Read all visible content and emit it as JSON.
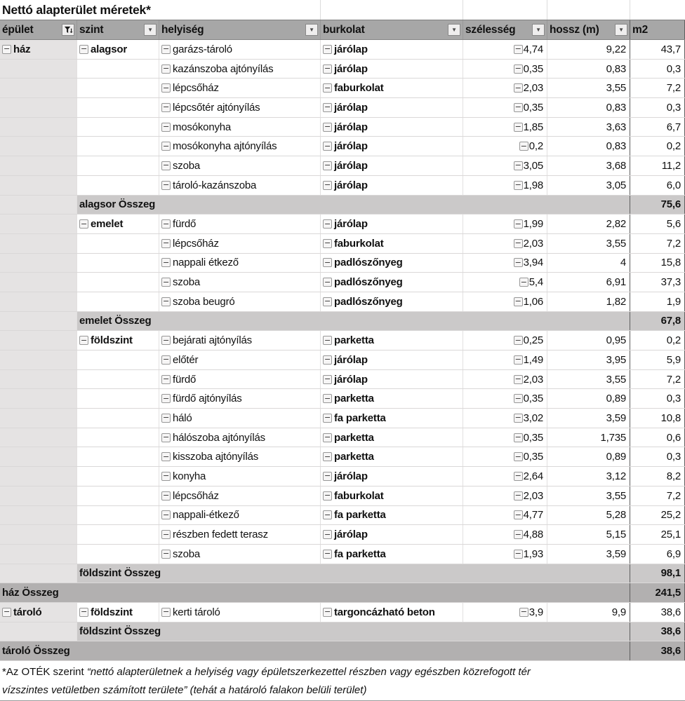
{
  "title": "Nettó alapterület méretek*",
  "icons": {
    "collapse": "−",
    "dropdown": "▼",
    "filter": "funnel-with-arrow"
  },
  "footnote": {
    "prefix": "*Az OTÉK szerint ",
    "italic1": "“nettó alapterületnek a helyiség vagy épületszerkezettel részben vagy egészben közrefogott tér",
    "italic2": "vízszintes vetületben számított területe” (tehát a határoló falakon belüli terület)"
  },
  "table": {
    "columns": [
      {
        "label": "épület",
        "icon": "filter"
      },
      {
        "label": "szint",
        "icon": "dropdown"
      },
      {
        "label": "helyiség",
        "icon": "dropdown"
      },
      {
        "label": "burkolat",
        "icon": "dropdown"
      },
      {
        "label": "szélesség",
        "icon": "dropdown"
      },
      {
        "label": "hossz (m)",
        "icon": "dropdown"
      },
      {
        "label": "m2",
        "icon": null
      }
    ],
    "rows": [
      {
        "type": "data",
        "c": [
          "ház",
          "alagsor",
          "garázs-tároló",
          "járólap",
          "4,74",
          "9,22",
          "43,7"
        ]
      },
      {
        "type": "data",
        "c": [
          "",
          "",
          "kazánszoba ajtónyílás",
          "járólap",
          "0,35",
          "0,83",
          "0,3"
        ]
      },
      {
        "type": "data",
        "c": [
          "",
          "",
          "lépcsőház",
          "faburkolat",
          "2,03",
          "3,55",
          "7,2"
        ]
      },
      {
        "type": "data",
        "c": [
          "",
          "",
          "lépcsőtér ajtónyílás",
          "járólap",
          "0,35",
          "0,83",
          "0,3"
        ]
      },
      {
        "type": "data",
        "c": [
          "",
          "",
          "mosókonyha",
          "járólap",
          "1,85",
          "3,63",
          "6,7"
        ]
      },
      {
        "type": "data",
        "c": [
          "",
          "",
          "mosókonyha ajtónyílás",
          "járólap",
          "0,2",
          "0,83",
          "0,2"
        ]
      },
      {
        "type": "data",
        "c": [
          "",
          "",
          "szoba",
          "járólap",
          "3,05",
          "3,68",
          "11,2"
        ]
      },
      {
        "type": "data",
        "c": [
          "",
          "",
          "tároló-kazánszoba",
          "járólap",
          "1,98",
          "3,05",
          "6,0"
        ]
      },
      {
        "type": "sub2",
        "label": "alagsor Összeg",
        "m2": "75,6"
      },
      {
        "type": "data",
        "c": [
          "",
          "emelet",
          "fürdő",
          "járólap",
          "1,99",
          "2,82",
          "5,6"
        ]
      },
      {
        "type": "data",
        "c": [
          "",
          "",
          "lépcsőház",
          "faburkolat",
          "2,03",
          "3,55",
          "7,2"
        ]
      },
      {
        "type": "data",
        "c": [
          "",
          "",
          "nappali étkező",
          "padlószőnyeg",
          "3,94",
          "4",
          "15,8"
        ]
      },
      {
        "type": "data",
        "c": [
          "",
          "",
          "szoba",
          "padlószőnyeg",
          "5,4",
          "6,91",
          "37,3"
        ]
      },
      {
        "type": "data",
        "c": [
          "",
          "",
          "szoba beugró",
          "padlószőnyeg",
          "1,06",
          "1,82",
          "1,9"
        ]
      },
      {
        "type": "sub2",
        "label": "emelet Összeg",
        "m2": "67,8"
      },
      {
        "type": "data",
        "c": [
          "",
          "földszint",
          "bejárati ajtónyílás",
          "parketta",
          "0,25",
          "0,95",
          "0,2"
        ]
      },
      {
        "type": "data",
        "c": [
          "",
          "",
          "előtér",
          "járólap",
          "1,49",
          "3,95",
          "5,9"
        ]
      },
      {
        "type": "data",
        "c": [
          "",
          "",
          "fürdő",
          "járólap",
          "2,03",
          "3,55",
          "7,2"
        ]
      },
      {
        "type": "data",
        "c": [
          "",
          "",
          "fürdő ajtónyílás",
          "parketta",
          "0,35",
          "0,89",
          "0,3"
        ]
      },
      {
        "type": "data",
        "c": [
          "",
          "",
          "háló",
          "fa parketta",
          "3,02",
          "3,59",
          "10,8"
        ]
      },
      {
        "type": "data",
        "c": [
          "",
          "",
          "hálószoba ajtónyílás",
          "parketta",
          "0,35",
          "1,735",
          "0,6"
        ]
      },
      {
        "type": "data",
        "c": [
          "",
          "",
          "kisszoba ajtónyílás",
          "parketta",
          "0,35",
          "0,89",
          "0,3"
        ]
      },
      {
        "type": "data",
        "c": [
          "",
          "",
          "konyha",
          "járólap",
          "2,64",
          "3,12",
          "8,2"
        ]
      },
      {
        "type": "data",
        "c": [
          "",
          "",
          "lépcsőház",
          "faburkolat",
          "2,03",
          "3,55",
          "7,2"
        ]
      },
      {
        "type": "data",
        "c": [
          "",
          "",
          "nappali-étkező",
          "fa parketta",
          "4,77",
          "5,28",
          "25,2"
        ]
      },
      {
        "type": "data",
        "c": [
          "",
          "",
          "részben fedett terasz",
          "járólap",
          "4,88",
          "5,15",
          "25,1"
        ]
      },
      {
        "type": "data",
        "c": [
          "",
          "",
          "szoba",
          "fa parketta",
          "1,93",
          "3,59",
          "6,9"
        ]
      },
      {
        "type": "sub2",
        "label": "földszint Összeg",
        "m2": "98,1"
      },
      {
        "type": "sub1",
        "label": "ház Összeg",
        "m2": "241,5"
      },
      {
        "type": "data",
        "c": [
          "tároló",
          "földszint",
          "kerti tároló",
          "targoncázható beton",
          "3,9",
          "9,9",
          "38,6"
        ]
      },
      {
        "type": "sub2",
        "label": "földszint Összeg",
        "m2": "38,6"
      },
      {
        "type": "sub1",
        "label": "tároló Összeg",
        "m2": "38,6"
      }
    ],
    "colors": {
      "header_bg": "#a7a7a7",
      "first_column_bg": "#e5e3e3",
      "subtotal_level2_bg": "#cbc9c9",
      "subtotal_level1_bg": "#b2b0b0",
      "gridline": "#dad8d8",
      "strong_line": "#5e5e5e"
    }
  }
}
